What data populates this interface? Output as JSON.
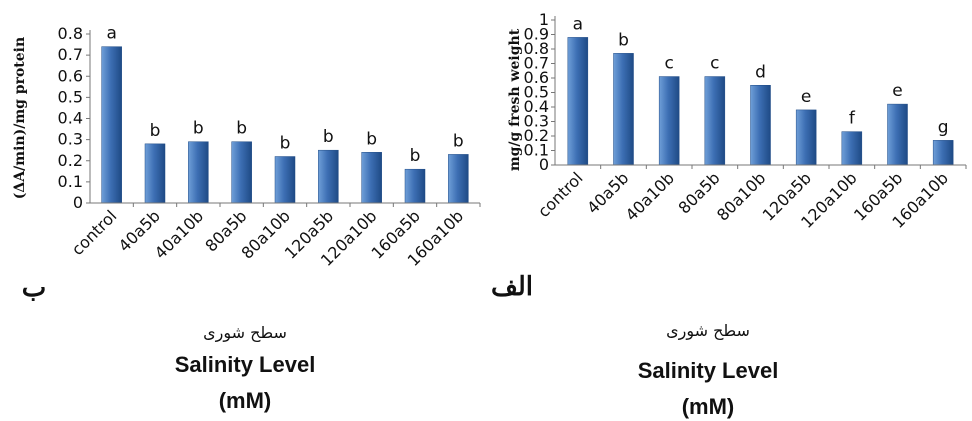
{
  "colors": {
    "bar_light": "#6f9fd8",
    "bar_mid": "#3d6fb4",
    "bar_dark": "#1e4a85",
    "axis": "#777777"
  },
  "chart_data": [
    {
      "type": "bar",
      "panel_label": "ب",
      "ylabel": "(ΔA/min)/mg protein",
      "xlabel_fa": "سطح شوری",
      "xlabel_en": "Salinity Level",
      "xlabel_unit": "(mM)",
      "categories": [
        "control",
        "40a5b",
        "40a10b",
        "80a5b",
        "80a10b",
        "120a5b",
        "120a10b",
        "160a5b",
        "160a10b"
      ],
      "values": [
        0.74,
        0.28,
        0.29,
        0.29,
        0.22,
        0.25,
        0.24,
        0.16,
        0.23
      ],
      "significance": [
        "a",
        "b",
        "b",
        "b",
        "b",
        "b",
        "b",
        "b",
        "b"
      ],
      "ylim": [
        0,
        0.8
      ],
      "yticks": [
        "0",
        "0.1",
        "0.2",
        "0.3",
        "0.4",
        "0.5",
        "0.6",
        "0.7",
        "0.8"
      ]
    },
    {
      "type": "bar",
      "panel_label": "الف",
      "ylabel": "mg/g fresh weight",
      "xlabel_fa": "سطح شوری",
      "xlabel_en": "Salinity Level",
      "xlabel_unit": "(mM)",
      "categories": [
        "control",
        "40a5b",
        "40a10b",
        "80a5b",
        "80a10b",
        "120a5b",
        "120a10b",
        "160a5b",
        "160a10b"
      ],
      "values": [
        0.88,
        0.77,
        0.61,
        0.61,
        0.55,
        0.38,
        0.23,
        0.42,
        0.17
      ],
      "significance": [
        "a",
        "b",
        "c",
        "c",
        "d",
        "e",
        "f",
        "e",
        "g"
      ],
      "ylim": [
        0,
        1
      ],
      "yticks": [
        "0",
        "0.1",
        "0.2",
        "0.3",
        "0.4",
        "0.5",
        "0.6",
        "0.7",
        "0.8",
        "0.9",
        "1"
      ]
    }
  ]
}
